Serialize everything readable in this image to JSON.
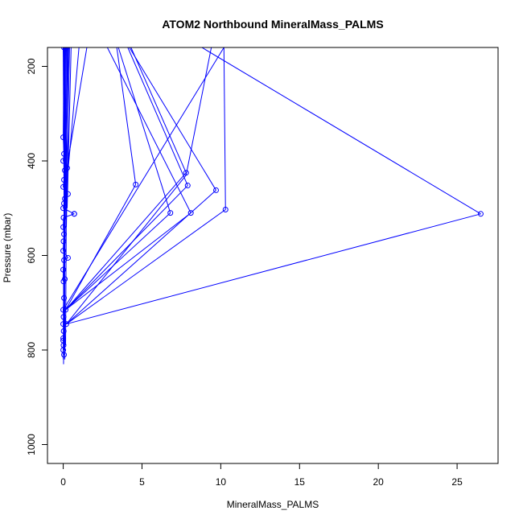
{
  "chart_data": {
    "type": "line",
    "title": "ATOM2 Northbound MineralMass_PALMS",
    "xlabel": "MineralMass_PALMS",
    "ylabel": "Pressure (mbar)",
    "xlim": [
      -1,
      27.6
    ],
    "ylim": [
      1040,
      160
    ],
    "y_axis_reversed": true,
    "x_ticks": [
      0,
      5,
      10,
      15,
      20,
      25
    ],
    "y_ticks": [
      200,
      400,
      600,
      800,
      1000
    ],
    "series_color": "#0000ff",
    "marker": "open-circle",
    "grid": false,
    "legend": "none",
    "series": [
      {
        "points": [
          {
            "x": 0.05,
            "y": 810
          },
          {
            "x": 0.0,
            "y": 800
          },
          {
            "x": 0.02,
            "y": 790
          },
          {
            "x": 0.0,
            "y": 775
          },
          {
            "x": 0.03,
            "y": 760
          },
          {
            "x": 0.0,
            "y": 745
          },
          {
            "x": 0.02,
            "y": 730
          },
          {
            "x": 0.0,
            "y": 715
          },
          {
            "x": 0.05,
            "y": 690
          },
          {
            "x": 0.02,
            "y": 655
          },
          {
            "x": 0.1,
            "y": 650
          },
          {
            "x": 0.0,
            "y": 630
          },
          {
            "x": 0.05,
            "y": 610
          },
          {
            "x": 0.3,
            "y": 605
          },
          {
            "x": 0.0,
            "y": 590
          },
          {
            "x": 0.02,
            "y": 570
          },
          {
            "x": 0.05,
            "y": 555
          },
          {
            "x": 0.0,
            "y": 540
          },
          {
            "x": 0.02,
            "y": 520
          },
          {
            "x": 0.7,
            "y": 512
          },
          {
            "x": 0.0,
            "y": 500
          },
          {
            "x": 0.05,
            "y": 490
          },
          {
            "x": 0.1,
            "y": 480
          },
          {
            "x": 0.3,
            "y": 470
          },
          {
            "x": 0.0,
            "y": 455
          },
          {
            "x": 0.05,
            "y": 440
          },
          {
            "x": 0.1,
            "y": 420
          },
          {
            "x": 0.25,
            "y": 415
          },
          {
            "x": 0.0,
            "y": 400
          },
          {
            "x": 0.05,
            "y": 385
          },
          {
            "x": 0.0,
            "y": 350
          },
          {
            "x": 0.05,
            "y": 160
          },
          {
            "x": 0.2,
            "y": 160
          },
          {
            "x": 0.0,
            "y": 780
          },
          {
            "x": 0.2,
            "y": 745
          },
          {
            "x": 0.15,
            "y": 715
          }
        ]
      }
    ],
    "segments": [
      [
        0.05,
        810,
        0.0,
        800
      ],
      [
        0.0,
        800,
        0.02,
        790
      ],
      [
        0.02,
        790,
        0.0,
        775
      ],
      [
        0.0,
        775,
        0.03,
        760
      ],
      [
        0.03,
        760,
        0.0,
        745
      ],
      [
        0.0,
        745,
        0.02,
        730
      ],
      [
        0.02,
        730,
        0.0,
        715
      ],
      [
        0.0,
        715,
        0.05,
        690
      ],
      [
        0.05,
        690,
        0.02,
        655
      ],
      [
        0.02,
        655,
        0.0,
        630
      ],
      [
        0.0,
        630,
        0.05,
        610
      ],
      [
        0.05,
        610,
        0.3,
        605
      ],
      [
        0.3,
        605,
        0.0,
        590
      ],
      [
        0.0,
        590,
        0.02,
        570
      ],
      [
        0.02,
        570,
        0.05,
        555
      ],
      [
        0.05,
        555,
        0.0,
        540
      ],
      [
        0.0,
        540,
        0.02,
        520
      ],
      [
        0.02,
        520,
        0.7,
        512
      ],
      [
        0.7,
        512,
        0.0,
        500
      ],
      [
        0.0,
        500,
        0.05,
        490
      ],
      [
        0.05,
        490,
        0.1,
        480
      ],
      [
        0.1,
        480,
        0.3,
        470
      ],
      [
        0.3,
        470,
        0.0,
        455
      ],
      [
        0.0,
        455,
        0.05,
        440
      ],
      [
        0.05,
        440,
        0.1,
        420
      ],
      [
        0.1,
        420,
        0.25,
        415
      ],
      [
        0.25,
        415,
        0.0,
        400
      ],
      [
        0.0,
        400,
        0.05,
        385
      ],
      [
        0.05,
        385,
        0.0,
        350
      ],
      [
        0.0,
        350,
        0.05,
        160
      ],
      [
        0.0,
        820,
        0.1,
        160
      ],
      [
        0.1,
        820,
        0.05,
        160
      ],
      [
        0.02,
        830,
        0.15,
        160
      ],
      [
        0.05,
        800,
        0.2,
        160
      ],
      [
        0.1,
        790,
        0.0,
        160
      ],
      [
        0.15,
        790,
        0.25,
        160
      ],
      [
        0.05,
        700,
        0.3,
        160
      ],
      [
        0.0,
        650,
        0.35,
        160
      ],
      [
        0.1,
        600,
        0.12,
        160
      ],
      [
        0.2,
        540,
        0.4,
        160
      ],
      [
        0.25,
        500,
        0.5,
        160
      ],
      [
        0.2,
        460,
        1.0,
        160
      ],
      [
        0.15,
        430,
        1.5,
        160
      ],
      [
        0.3,
        415,
        0.0,
        160
      ],
      [
        0.15,
        715,
        4.6,
        450
      ],
      [
        4.6,
        450,
        3.4,
        160
      ],
      [
        0.15,
        715,
        6.8,
        510
      ],
      [
        6.8,
        510,
        3.5,
        160
      ],
      [
        0.15,
        715,
        8.1,
        510
      ],
      [
        8.1,
        510,
        2.8,
        160
      ],
      [
        0.15,
        715,
        7.8,
        425
      ],
      [
        7.8,
        425,
        4.3,
        160
      ],
      [
        0.15,
        715,
        7.9,
        452
      ],
      [
        7.9,
        452,
        4.1,
        160
      ],
      [
        0.2,
        745,
        7.8,
        430
      ],
      [
        7.8,
        430,
        9.4,
        160
      ],
      [
        0.2,
        745,
        9.7,
        462
      ],
      [
        9.7,
        462,
        4.2,
        160
      ],
      [
        0.2,
        745,
        10.3,
        503
      ],
      [
        10.3,
        503,
        10.2,
        160
      ],
      [
        0.2,
        745,
        26.5,
        512
      ],
      [
        26.5,
        512,
        8.8,
        160
      ],
      [
        0.2,
        745,
        0.0,
        715
      ],
      [
        0.0,
        715,
        10.2,
        160
      ]
    ],
    "outliers": [
      {
        "x": 4.6,
        "y": 450
      },
      {
        "x": 6.8,
        "y": 510
      },
      {
        "x": 8.1,
        "y": 510
      },
      {
        "x": 7.8,
        "y": 425
      },
      {
        "x": 7.9,
        "y": 452
      },
      {
        "x": 9.7,
        "y": 462
      },
      {
        "x": 10.3,
        "y": 503
      },
      {
        "x": 26.5,
        "y": 512
      },
      {
        "x": 0.7,
        "y": 512
      }
    ]
  }
}
